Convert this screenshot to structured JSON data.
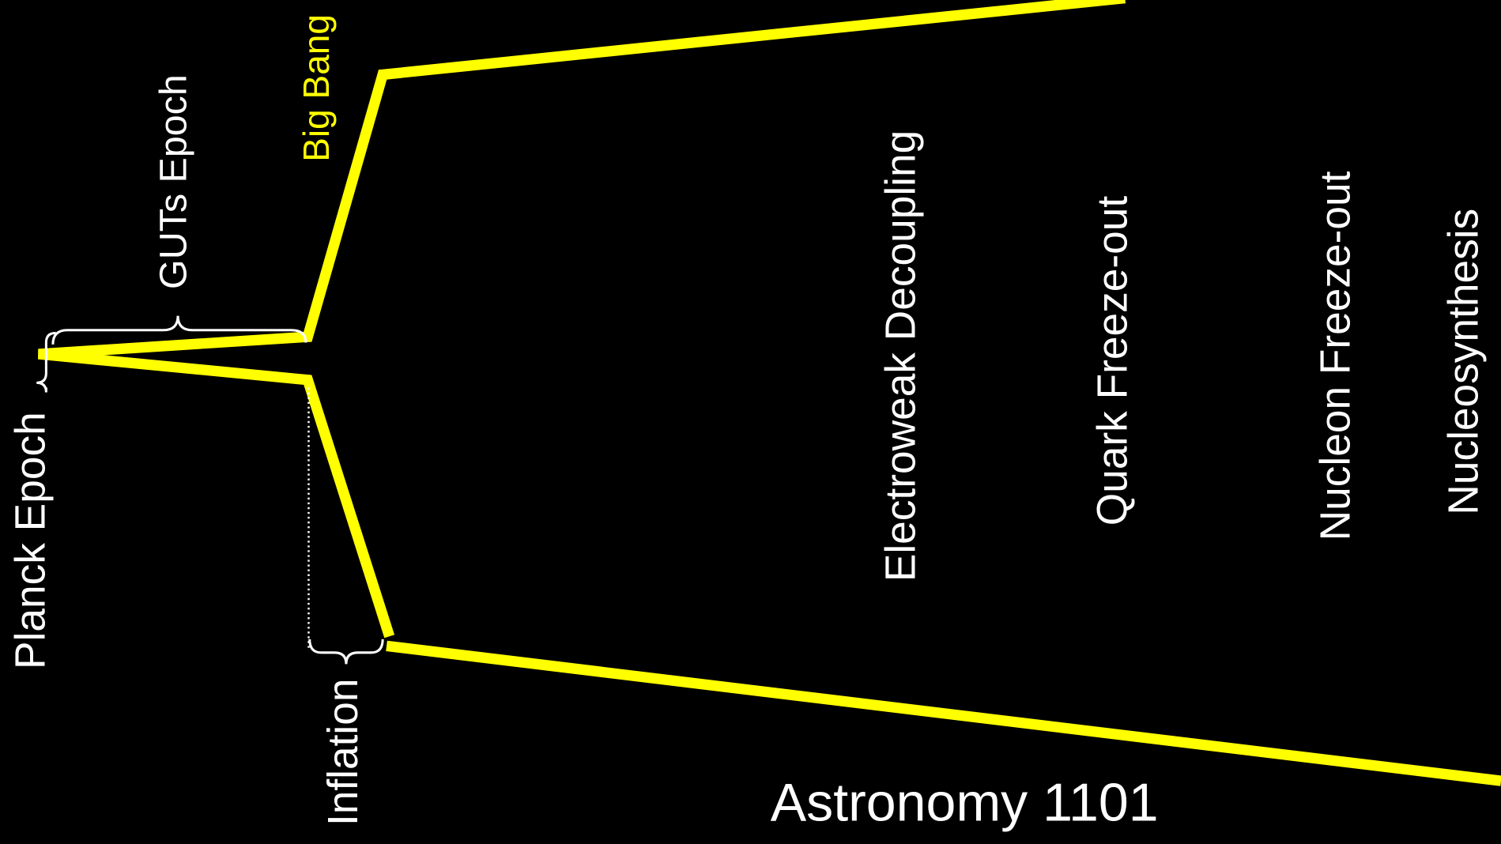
{
  "labels": {
    "planck": "Planck Epoch",
    "guts": "GUTs Epoch",
    "big_bang": "Big Bang",
    "inflation": "Inflation",
    "electroweak": "Electroweak Decoupling",
    "quark": "Quark Freeze-out",
    "nucleon": "Nucleon Freeze-out",
    "nucleosynthesis": "Nucleosynthesis"
  },
  "footer": "Astronomy 1101"
}
